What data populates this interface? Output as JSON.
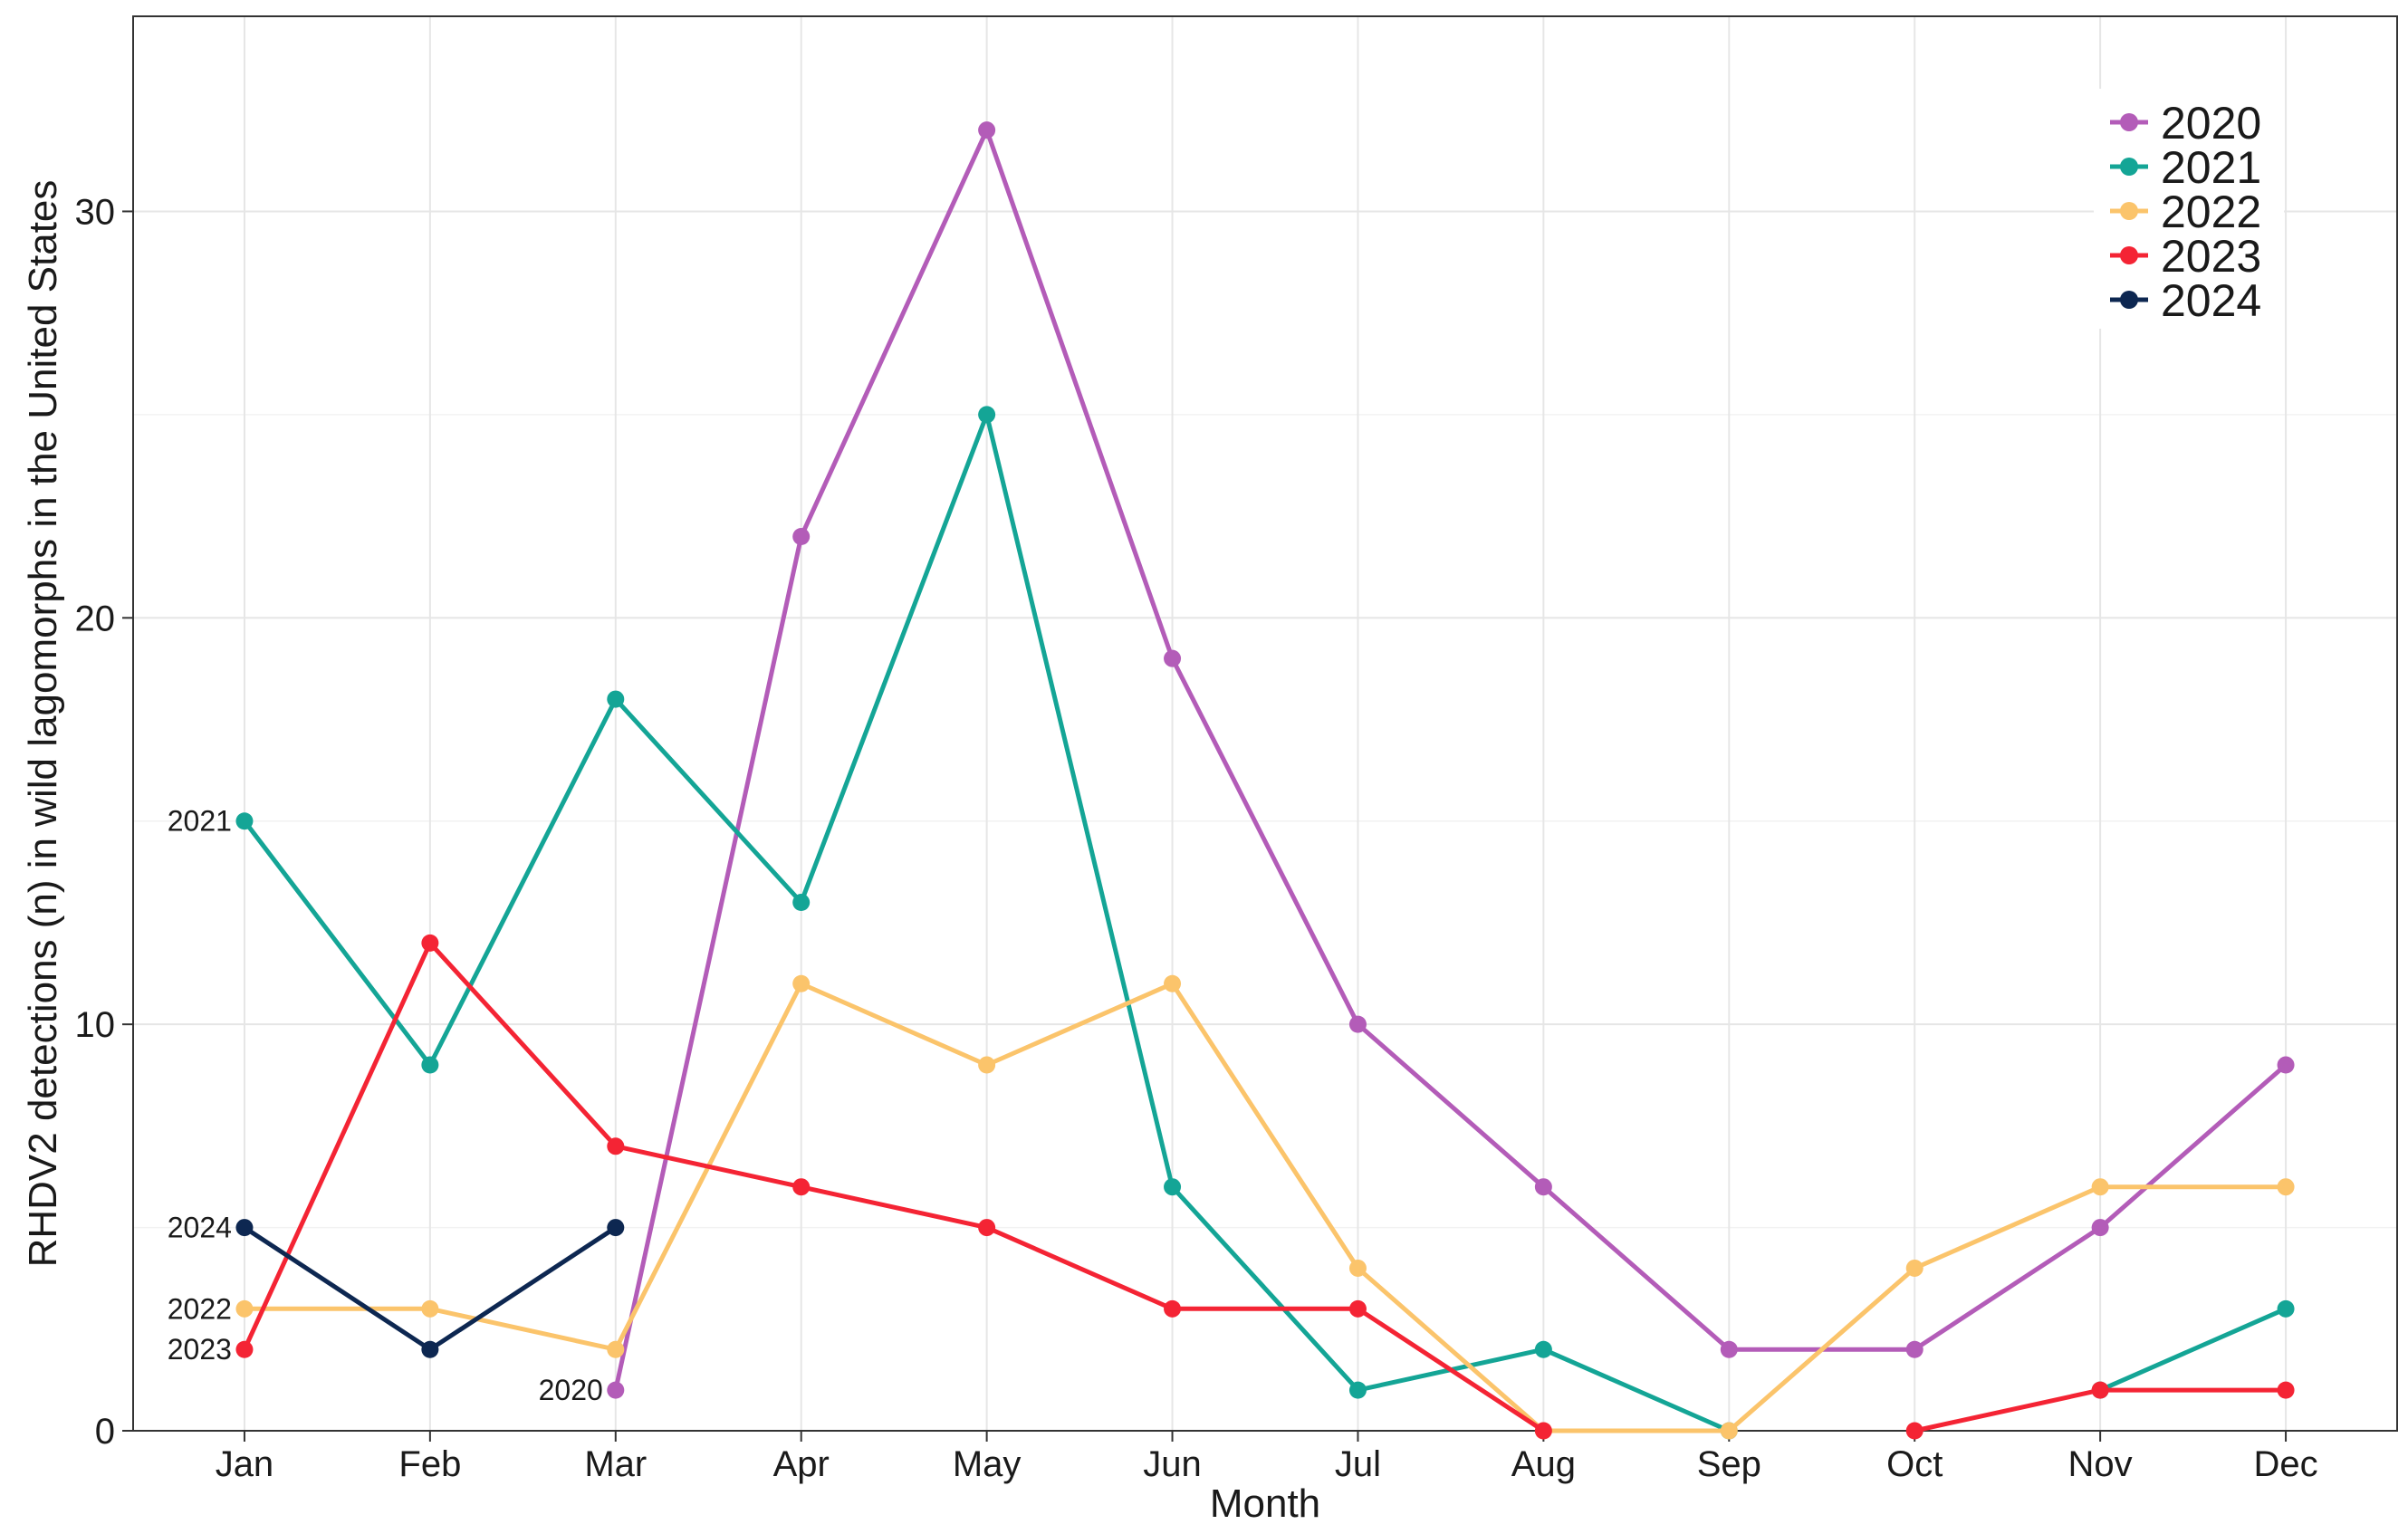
{
  "chart_data": {
    "type": "line",
    "title": "",
    "xlabel": "Month",
    "ylabel": "RHDV2 detections (n) in wild lagomorphs in the United States",
    "categories": [
      "Jan",
      "Feb",
      "Mar",
      "Apr",
      "May",
      "Jun",
      "Jul",
      "Aug",
      "Sep",
      "Oct",
      "Nov",
      "Dec"
    ],
    "ylim": [
      0,
      34.8
    ],
    "yticks": [
      0,
      10,
      20,
      30
    ],
    "ytick_labels": [
      "0",
      "10",
      "20",
      "30"
    ],
    "grid": true,
    "legend_position": "top-right",
    "series": [
      {
        "name": "2020",
        "color": "#b35cb8",
        "values": [
          null,
          null,
          1,
          22,
          32,
          19,
          10,
          6,
          2,
          2,
          5,
          9
        ],
        "start_label": "2020"
      },
      {
        "name": "2021",
        "color": "#14a596",
        "values": [
          15,
          9,
          18,
          13,
          25,
          6,
          1,
          2,
          0,
          null,
          1,
          3
        ],
        "start_label": "2021"
      },
      {
        "name": "2022",
        "color": "#fbc46b",
        "values": [
          3,
          3,
          2,
          11,
          9,
          11,
          4,
          0,
          0,
          4,
          6,
          6
        ],
        "start_label": "2022"
      },
      {
        "name": "2023",
        "color": "#f42434",
        "values": [
          2,
          12,
          7,
          6,
          5,
          3,
          3,
          0,
          null,
          0,
          1,
          1
        ],
        "start_label": "2023"
      },
      {
        "name": "2024",
        "color": "#0d2751",
        "values": [
          5,
          2,
          5,
          null,
          null,
          null,
          null,
          null,
          null,
          null,
          null,
          null
        ],
        "start_label": "2024"
      }
    ]
  }
}
